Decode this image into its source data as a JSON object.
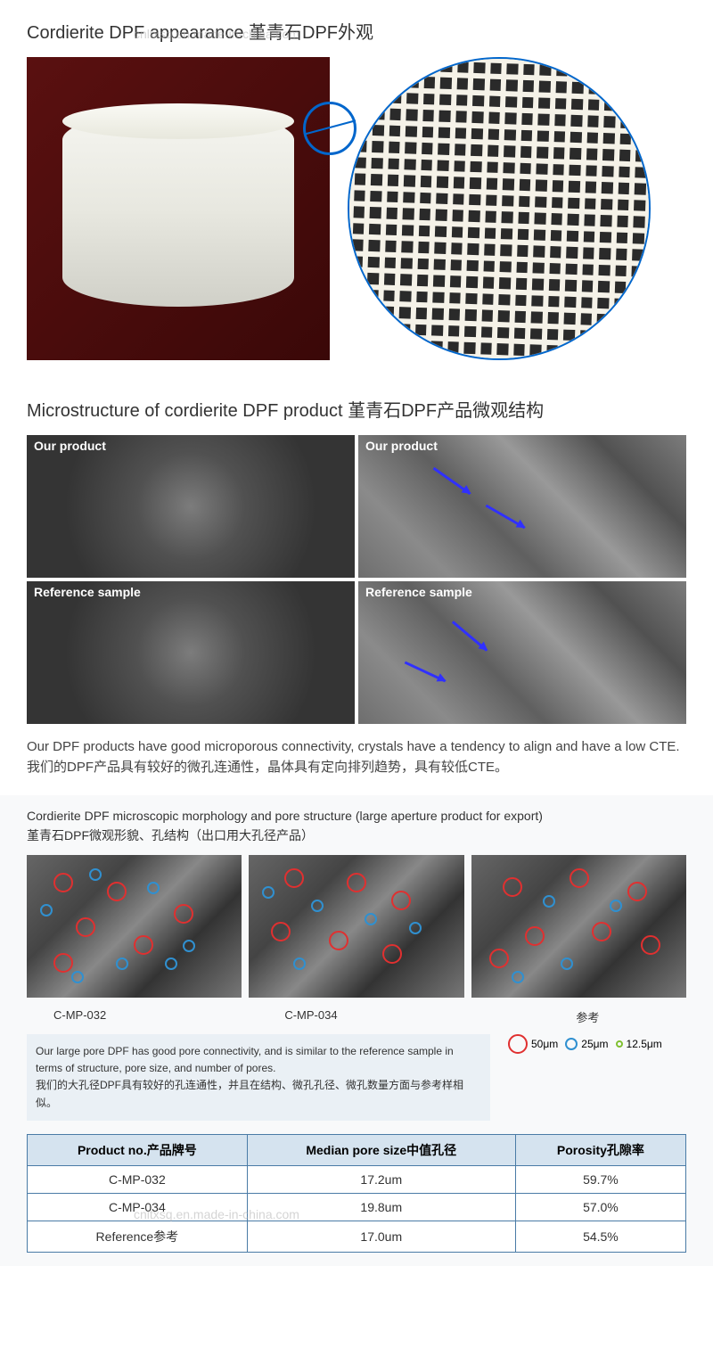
{
  "section1": {
    "title": "Cordierite DPF appearance 堇青石DPF外观"
  },
  "section2": {
    "title": "Microstructure of cordierite DPF product 堇青石DPF产品微观结构",
    "labels": [
      "Our product",
      "Our product",
      "Reference sample",
      "Reference sample"
    ],
    "desc_en": "Our DPF products have good microporous connectivity, crystals have a tendency to align and have a low CTE.",
    "desc_cn": "我们的DPF产品具有较好的微孔连通性，晶体具有定向排列趋势，具有较低CTE。"
  },
  "section3": {
    "title_en": "Cordierite DPF microscopic morphology and pore structure (large aperture product for export)",
    "title_cn": "堇青石DPF微观形貌、孔结构（出口用大孔径产品）",
    "sample_labels": [
      "C-MP-032",
      "C-MP-034",
      "参考"
    ],
    "note_en": "Our large pore DPF has good pore connectivity, and is similar to the reference sample in terms of structure, pore size, and number of pores.",
    "note_cn": "我们的大孔径DPF具有较好的孔连通性，并且在结构、微孔孔径、微孔数量方面与参考样相似。",
    "legend": [
      {
        "size": "50μm",
        "color": "#e03030",
        "d": 22
      },
      {
        "size": "25μm",
        "color": "#3090d0",
        "d": 14
      },
      {
        "size": "12.5μm",
        "color": "#80c030",
        "d": 8
      }
    ],
    "table": {
      "headers": [
        "Product no.产品牌号",
        "Median pore size中值孔径",
        "Porosity孔隙率"
      ],
      "rows": [
        [
          "C-MP-032",
          "17.2um",
          "59.7%"
        ],
        [
          "C-MP-034",
          "19.8um",
          "57.0%"
        ],
        [
          "Reference参考",
          "17.0um",
          "54.5%"
        ]
      ]
    }
  },
  "watermark": "cnltxsq.en.made-in-china.com",
  "colors": {
    "accent_blue": "#0066cc",
    "table_border": "#4a7ba6",
    "table_header_bg": "#d5e3ef",
    "note_bg": "#eaf0f5",
    "circle_red": "#e03030",
    "circle_blue": "#3090d0",
    "circle_green": "#80c030"
  }
}
